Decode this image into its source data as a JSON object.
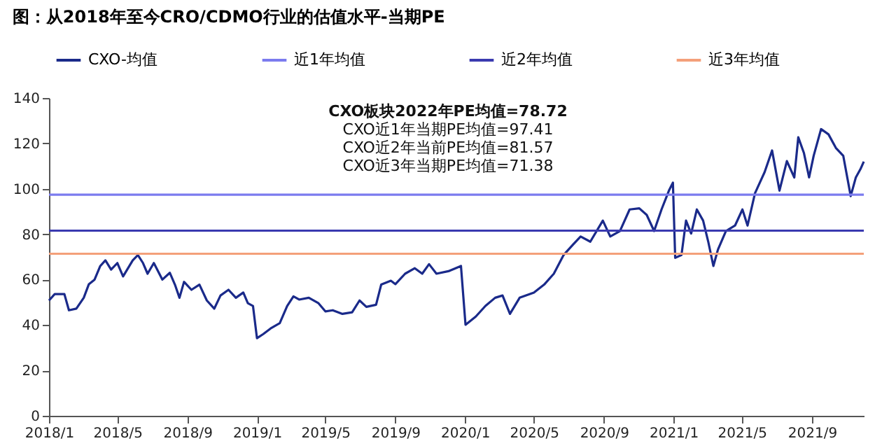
{
  "chart_data": {
    "type": "line",
    "title": "图：从2018年至今CRO/CDMO行业的估值水平-当期PE",
    "annotations": [
      "CXO板块2022年PE均值=78.72",
      "CXO近1年当期PE均值=97.41",
      "CXO近2年当前PE均值=81.57",
      "CXO近3年当期PE均值=71.38"
    ],
    "xlim": [
      "2018-01-01",
      "2021-12-01"
    ],
    "xticks": [
      {
        "value": "2018-01-01",
        "label": "2018/1"
      },
      {
        "value": "2018-05-01",
        "label": "2018/5"
      },
      {
        "value": "2018-09-01",
        "label": "2018/9"
      },
      {
        "value": "2019-01-01",
        "label": "2019/1"
      },
      {
        "value": "2019-05-01",
        "label": "2019/5"
      },
      {
        "value": "2019-09-01",
        "label": "2019/9"
      },
      {
        "value": "2020-01-01",
        "label": "2020/1"
      },
      {
        "value": "2020-05-01",
        "label": "2020/5"
      },
      {
        "value": "2020-09-01",
        "label": "2020/9"
      },
      {
        "value": "2021-01-01",
        "label": "2021/1"
      },
      {
        "value": "2021-05-01",
        "label": "2021/5"
      },
      {
        "value": "2021-09-01",
        "label": "2021/9"
      }
    ],
    "ylim": [
      0,
      140
    ],
    "yticks": [
      0,
      20,
      40,
      60,
      80,
      100,
      120,
      140
    ],
    "grid": false,
    "legend": "top",
    "marker": "none",
    "line_style": "solid",
    "series": [
      {
        "name": "CXO-均值",
        "color": "#1a2a8a",
        "x": [
          "2018-01-01",
          "2018-01-11",
          "2018-01-28",
          "2018-02-05",
          "2018-02-18",
          "2018-03-03",
          "2018-03-12",
          "2018-03-22",
          "2018-04-01",
          "2018-04-10",
          "2018-04-20",
          "2018-05-01",
          "2018-05-11",
          "2018-05-28",
          "2018-06-06",
          "2018-06-15",
          "2018-06-23",
          "2018-07-04",
          "2018-07-19",
          "2018-08-01",
          "2018-08-10",
          "2018-08-18",
          "2018-08-26",
          "2018-09-08",
          "2018-09-22",
          "2018-10-05",
          "2018-10-18",
          "2018-10-29",
          "2018-11-12",
          "2018-11-25",
          "2018-12-08",
          "2018-12-16",
          "2018-12-25",
          "2019-01-01",
          "2019-01-12",
          "2019-01-25",
          "2019-02-10",
          "2019-02-23",
          "2019-03-06",
          "2019-03-16",
          "2019-04-02",
          "2019-04-19",
          "2019-05-01",
          "2019-05-14",
          "2019-05-31",
          "2019-06-17",
          "2019-06-30",
          "2019-07-12",
          "2019-07-29",
          "2019-08-07",
          "2019-08-24",
          "2019-09-01",
          "2019-09-18",
          "2019-10-05",
          "2019-10-18",
          "2019-10-30",
          "2019-11-12",
          "2019-12-03",
          "2019-12-25",
          "2020-01-02",
          "2020-01-20",
          "2020-02-06",
          "2020-02-23",
          "2020-03-07",
          "2020-03-20",
          "2020-04-06",
          "2020-05-01",
          "2020-05-19",
          "2020-06-05",
          "2020-06-22",
          "2020-07-09",
          "2020-07-22",
          "2020-08-08",
          "2020-08-30",
          "2020-09-12",
          "2020-09-29",
          "2020-10-16",
          "2020-11-02",
          "2020-11-15",
          "2020-11-28",
          "2020-12-11",
          "2020-12-24",
          "2020-12-31",
          "2021-01-04",
          "2021-01-15",
          "2021-01-23",
          "2021-02-01",
          "2021-02-11",
          "2021-02-22",
          "2021-03-03",
          "2021-03-12",
          "2021-03-20",
          "2021-04-03",
          "2021-04-19",
          "2021-05-02",
          "2021-05-11",
          "2021-05-24",
          "2021-06-10",
          "2021-06-23",
          "2021-07-06",
          "2021-07-19",
          "2021-08-01",
          "2021-08-08",
          "2021-08-18",
          "2021-08-27",
          "2021-09-04",
          "2021-09-17",
          "2021-09-30",
          "2021-10-13",
          "2021-10-26",
          "2021-11-08",
          "2021-11-17",
          "2021-11-25",
          "2021-12-01"
        ],
        "values": [
          50.8,
          53.6,
          53.6,
          46.5,
          47.2,
          52,
          58,
          60,
          66,
          68.5,
          64.4,
          67.3,
          61.4,
          68.5,
          70.8,
          67.3,
          62.6,
          67.3,
          60,
          63,
          57.8,
          52,
          59,
          55.5,
          57.8,
          50.8,
          47.2,
          53,
          55.5,
          52,
          54.3,
          49.6,
          48.4,
          34.2,
          36,
          38.5,
          40.8,
          48.4,
          52.6,
          51.2,
          52,
          49.6,
          46,
          46.5,
          44.9,
          45.6,
          50.8,
          48,
          48.9,
          57.8,
          59.5,
          58,
          62.6,
          65,
          62.6,
          66.8,
          62.6,
          63.7,
          66,
          40.1,
          43.7,
          48.4,
          52,
          53,
          44.9,
          52,
          54.3,
          57.8,
          62.6,
          70.8,
          75.5,
          79,
          76.7,
          86,
          79,
          81.4,
          90.9,
          91.4,
          88.5,
          81.4,
          90.9,
          99.2,
          102.7,
          69.6,
          70.8,
          86,
          80.3,
          90.9,
          86,
          76.7,
          66,
          73.2,
          81.4,
          83.8,
          90.9,
          83.8,
          98,
          107.4,
          116.9,
          99.2,
          112.2,
          105,
          122.7,
          115.7,
          105,
          114.5,
          126.3,
          124,
          118,
          114.5,
          96.8,
          105,
          108.6,
          112
        ]
      },
      {
        "name": "近1年均值",
        "color": "#7b7bef",
        "x": [
          "2018-01-01",
          "2021-12-01"
        ],
        "values": [
          97.41,
          97.41
        ]
      },
      {
        "name": "近2年均值",
        "color": "#3a3ab0",
        "x": [
          "2018-01-01",
          "2021-12-01"
        ],
        "values": [
          81.57,
          81.57
        ]
      },
      {
        "name": "近3年均值",
        "color": "#f4a07a",
        "x": [
          "2018-01-01",
          "2021-12-01"
        ],
        "values": [
          71.38,
          71.38
        ]
      }
    ]
  }
}
